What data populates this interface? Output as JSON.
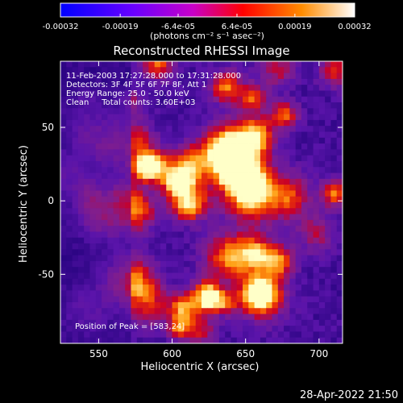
{
  "chart_data": {
    "type": "heatmap",
    "title": "Reconstructed RHESSI Image",
    "xlabel": "Heliocentric X (arcsec)",
    "ylabel": "Heliocentric Y (arcsec)",
    "xlim": [
      524,
      716
    ],
    "ylim": [
      -97,
      95
    ],
    "xticks": [
      550,
      600,
      650,
      700
    ],
    "yticks": [
      50,
      0,
      -50
    ],
    "colorbar": {
      "range": [
        -0.00032,
        0.00032
      ],
      "tick_values": [
        -0.00032,
        -0.00019,
        -6.4e-05,
        6.4e-05,
        0.00019,
        0.00032
      ],
      "tick_labels": [
        "-0.00032",
        "-0.00019",
        "-6.4e-05",
        "6.4e-05",
        "0.00019",
        "0.00032"
      ],
      "units": "(photons cm⁻² s⁻¹ asec⁻²)",
      "colors": [
        "#0000ff",
        "#6a00ff",
        "#c800c8",
        "#ff0000",
        "#ff8c00",
        "#ffffff"
      ]
    },
    "annotations": [
      "11-Feb-2003 17:27:28.000 to 17:31:28.000",
      "Detectors: 3F 4F 5F 6F 7F 8F, Att 1",
      "Energy Range: 25.0 - 50.0 keV",
      "Clean     Total counts: 3.60E+03"
    ],
    "peak_label": "Position of Peak = [583,24]",
    "grid": false,
    "image_grid": {
      "nx": 48,
      "ny": 48
    }
  },
  "footer": {
    "timestamp": "28-Apr-2022 21:50"
  }
}
